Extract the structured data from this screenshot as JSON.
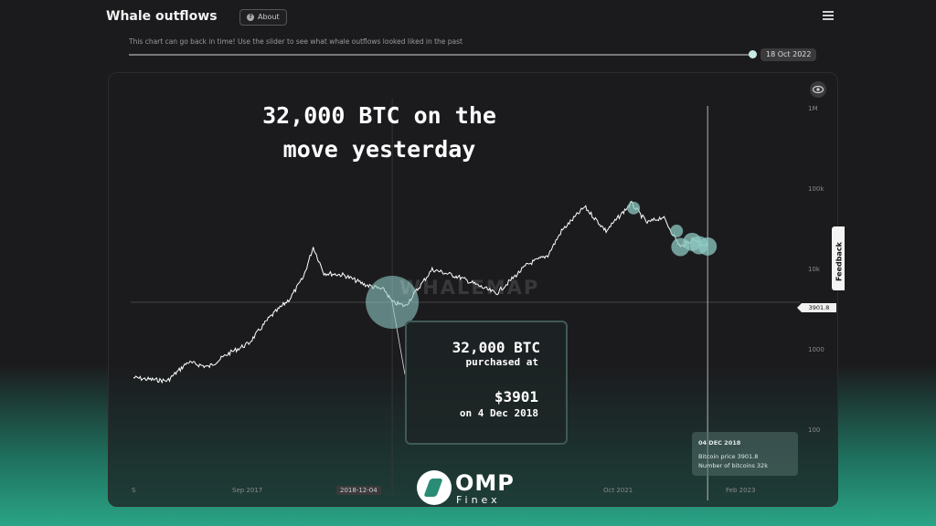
{
  "header": {
    "title": "Whale outflows",
    "about_label": "About",
    "menu_icon": "hamburger-icon"
  },
  "slider": {
    "hint": "This chart can go back in time! Use the slider to see what whale outflows looked liked in the past",
    "date": "18 Oct 2022"
  },
  "headline": {
    "line1": "32,000 BTC on the",
    "line2": "move yesterday"
  },
  "watermark": "WHALEMAP",
  "annotation": {
    "amount": "32,000 BTC",
    "purchased_at": "purchased at",
    "price": "$3901",
    "date": "on 4 Dec 2018"
  },
  "tooltip": {
    "date": "04 DEC 2018",
    "price_line": "Bitcoin price 3901.8",
    "count_line": "Number of bitcoins 32k"
  },
  "feedback_label": "Feedback",
  "brand": {
    "name": "OMP",
    "sub": "Finex"
  },
  "colors": {
    "accent": "#8fc9c3",
    "line": "#ffffff",
    "background": "#1b1b1d",
    "brand_green": "#2aa486"
  },
  "chart_data": {
    "type": "line",
    "scale": "log",
    "y_ticks": [
      "1M",
      "100k",
      "10k",
      "1000",
      "100"
    ],
    "y_tick_values": [
      1000000,
      100000,
      10000,
      1000,
      100
    ],
    "x_ticks": [
      "S",
      "Sep 2017",
      "2018-12-04",
      "Oct 2021",
      "Feb 2023"
    ],
    "x_tick_dates": [
      "2015-10-01",
      "2017-09-01",
      "2018-12-04",
      "2021-10-01",
      "2023-02-01"
    ],
    "price_marker": "3901.8",
    "series": [
      {
        "values": [
          [
            "2015-10-01",
            450
          ],
          [
            "2015-12-01",
            430
          ],
          [
            "2016-03-01",
            410
          ],
          [
            "2016-06-01",
            700
          ],
          [
            "2016-09-01",
            610
          ],
          [
            "2016-12-01",
            900
          ],
          [
            "2017-03-01",
            1200
          ],
          [
            "2017-06-01",
            2500
          ],
          [
            "2017-09-01",
            4300
          ],
          [
            "2017-11-01",
            8000
          ],
          [
            "2017-12-15",
            19000
          ],
          [
            "2018-02-01",
            9000
          ],
          [
            "2018-05-01",
            8500
          ],
          [
            "2018-08-01",
            6500
          ],
          [
            "2018-11-01",
            5500
          ],
          [
            "2018-12-04",
            3901
          ],
          [
            "2019-02-01",
            3500
          ],
          [
            "2019-06-01",
            10000
          ],
          [
            "2019-10-01",
            8000
          ],
          [
            "2020-03-15",
            5000
          ],
          [
            "2020-08-01",
            11500
          ],
          [
            "2020-11-01",
            15000
          ],
          [
            "2021-01-01",
            30000
          ],
          [
            "2021-04-15",
            60000
          ],
          [
            "2021-07-20",
            30000
          ],
          [
            "2021-11-10",
            67000
          ],
          [
            "2022-01-20",
            38000
          ],
          [
            "2022-04-01",
            45000
          ],
          [
            "2022-06-18",
            19000
          ],
          [
            "2022-08-15",
            24000
          ],
          [
            "2022-10-18",
            19300
          ]
        ]
      }
    ],
    "whale_bubbles": [
      {
        "date": "2018-12-04",
        "value": 3901,
        "size": "large"
      },
      {
        "date": "2021-11-20",
        "value": 58000,
        "size": "small"
      },
      {
        "date": "2022-06-01",
        "value": 30000,
        "size": "small"
      },
      {
        "date": "2022-06-18",
        "value": 19000,
        "size": "medium"
      },
      {
        "date": "2022-08-10",
        "value": 22000,
        "size": "medium"
      },
      {
        "date": "2022-09-10",
        "value": 20000,
        "size": "medium"
      },
      {
        "date": "2022-10-18",
        "value": 19300,
        "size": "medium"
      }
    ],
    "crosshair_date": "2022-10-18"
  }
}
